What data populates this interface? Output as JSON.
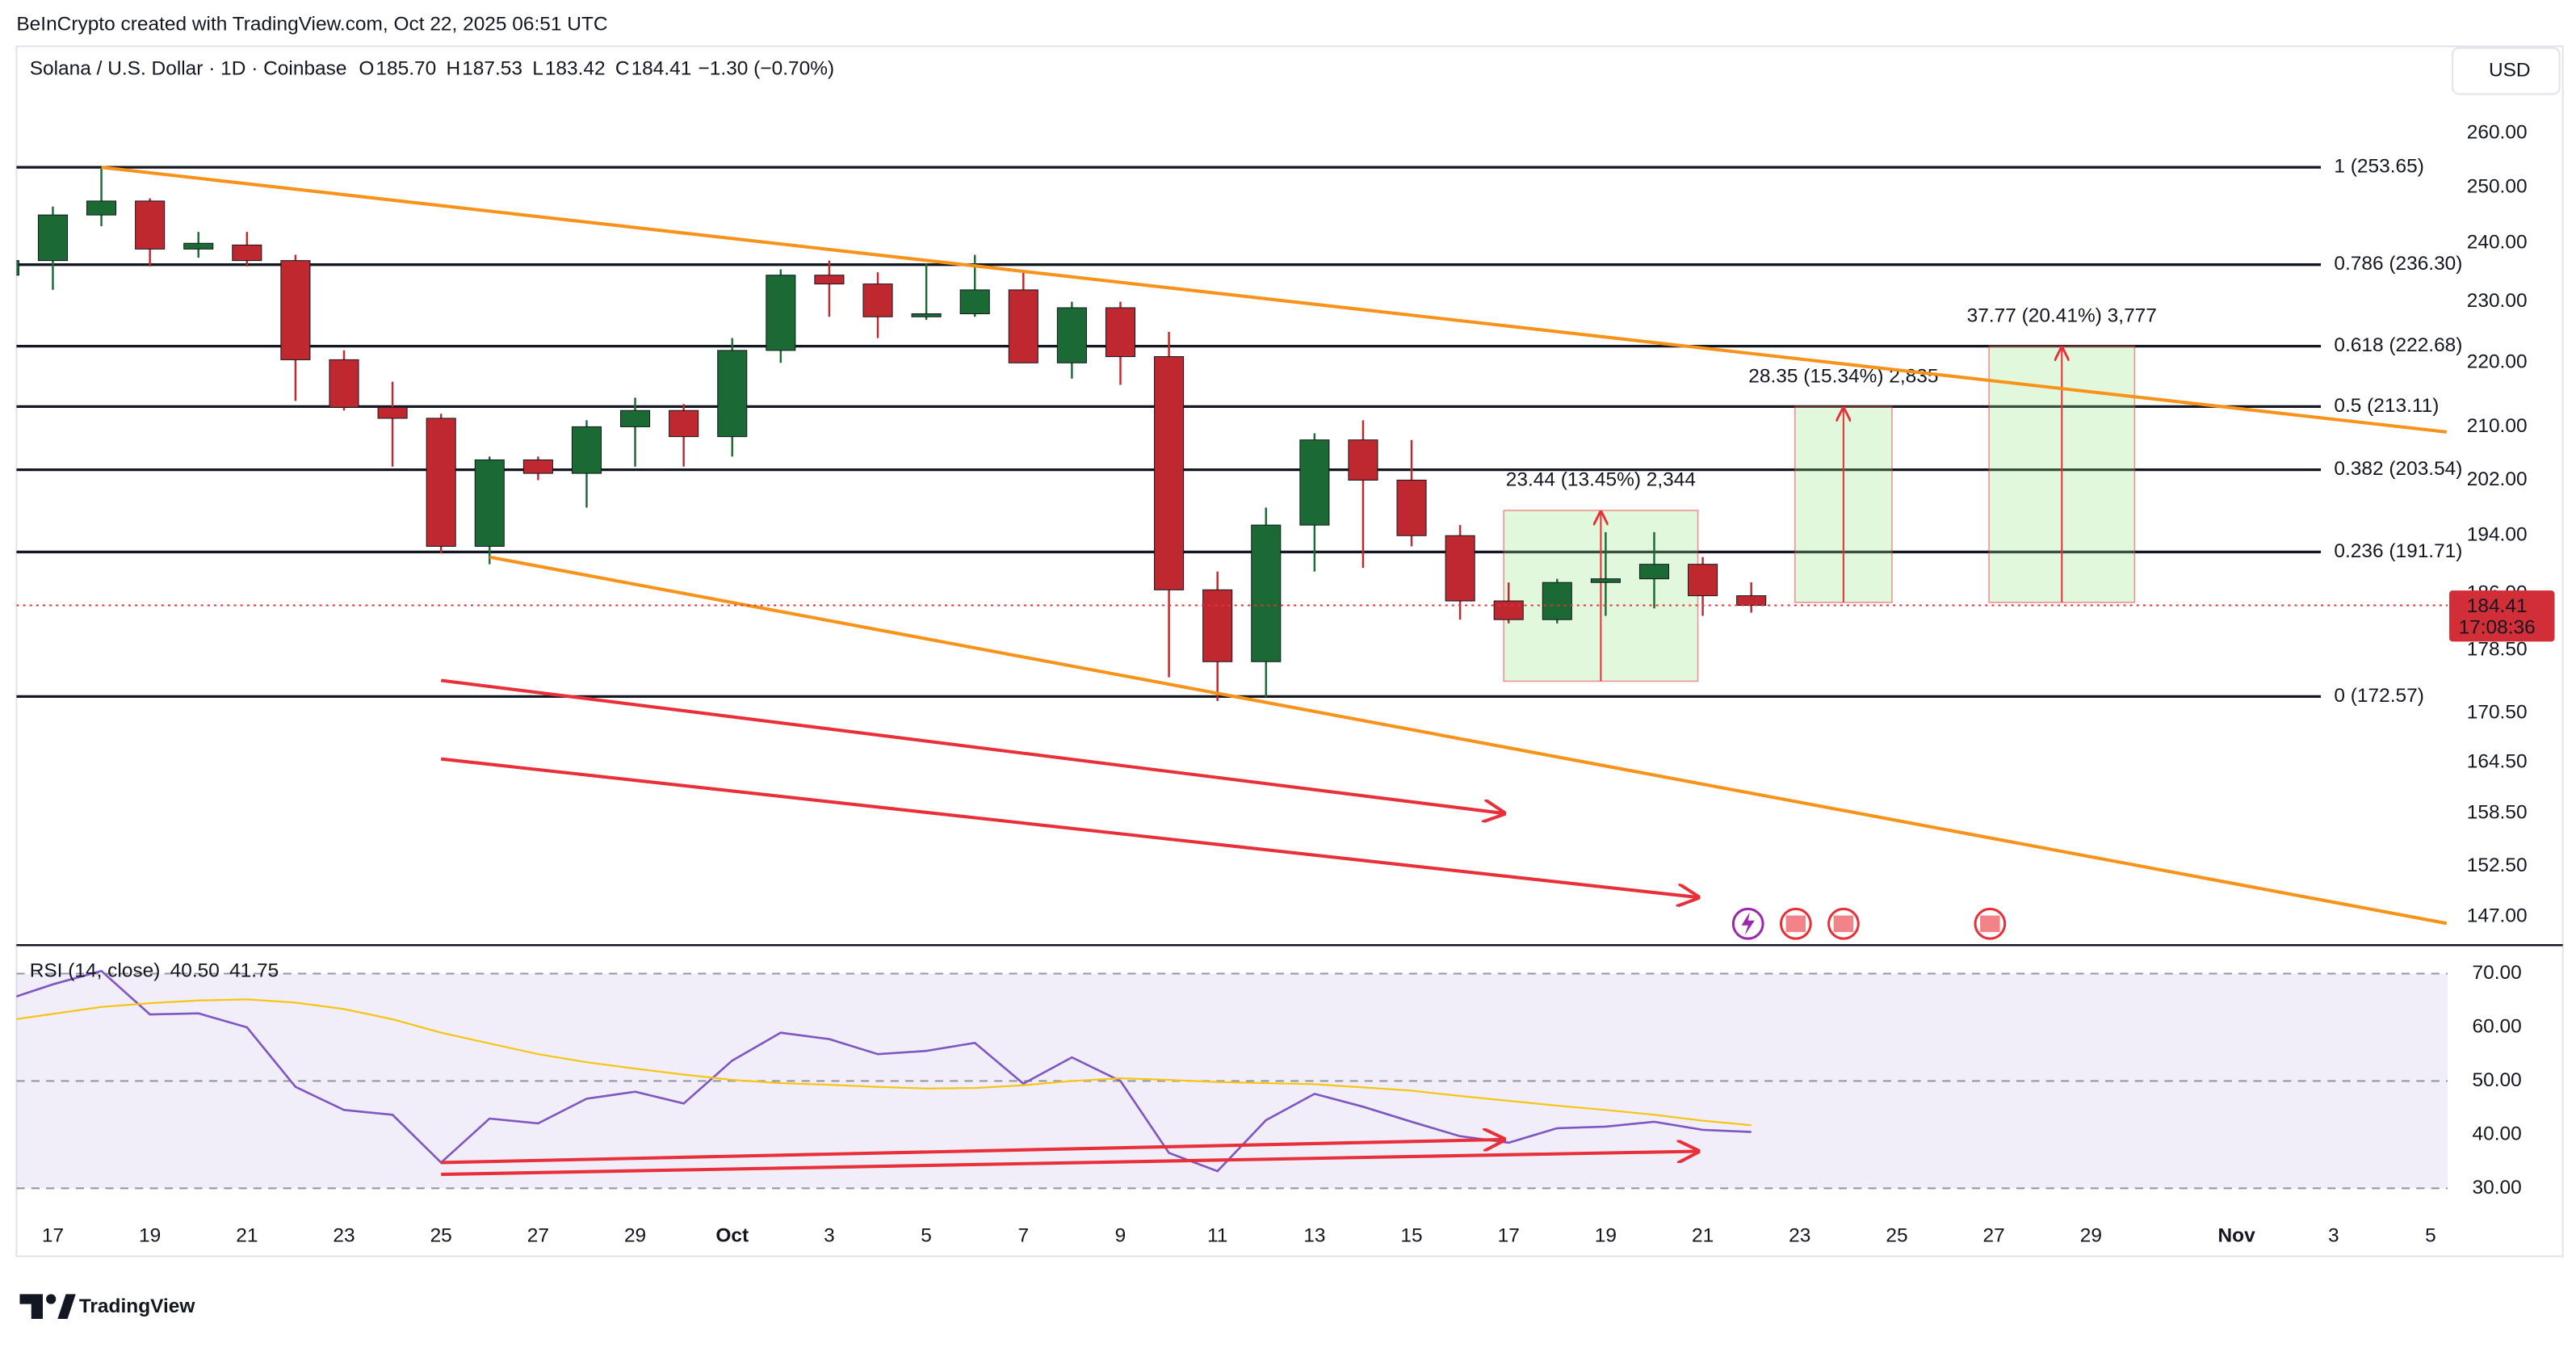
{
  "header": {
    "attribution": "BeInCrypto created with TradingView.com, Oct 22, 2025 06:51 UTC",
    "symbol": "Solana / U.S. Dollar · 1D · Coinbase",
    "ohlc": [
      {
        "label": "O",
        "value": "185.70"
      },
      {
        "label": "H",
        "value": "187.53"
      },
      {
        "label": "L",
        "value": "183.42"
      },
      {
        "label": "C",
        "value": "184.41"
      }
    ],
    "change": "−1.30 (−0.70%)",
    "currency": "USD",
    "brand": "TradingView"
  },
  "chart_data": [
    {
      "type": "candlestick",
      "title": "Solana / U.S. Dollar · 1D · Coinbase",
      "x": [
        0,
        1,
        2,
        3,
        4,
        5,
        6,
        7,
        8,
        9,
        10,
        11,
        12,
        13,
        14,
        15,
        16,
        17,
        18,
        19,
        20,
        21,
        22,
        23,
        24,
        25,
        26,
        27,
        28,
        29,
        30,
        31,
        32,
        33,
        34,
        35,
        36
      ],
      "open": [
        234.5,
        237,
        245,
        247.5,
        239,
        239.7,
        237,
        220.5,
        213,
        211.3,
        192.5,
        205,
        203,
        210,
        212.5,
        208.5,
        222,
        234.5,
        233,
        227.5,
        228,
        232,
        220,
        229,
        221,
        186.5,
        177,
        195.5,
        208,
        202,
        194,
        185,
        182.5,
        187.5,
        188,
        190,
        185.7
      ],
      "high": [
        238,
        246.5,
        253.5,
        248,
        242,
        242,
        238,
        222,
        217,
        212,
        205.5,
        205.5,
        211,
        214.5,
        213.5,
        224,
        235.5,
        237,
        235,
        236.5,
        238,
        235,
        230,
        230,
        225,
        189,
        198,
        209,
        211,
        208,
        195.5,
        187.5,
        188,
        194.5,
        194.5,
        191,
        187.53
      ],
      "low": [
        233,
        232,
        243,
        236,
        237.5,
        236,
        214,
        212.5,
        204,
        191.5,
        190,
        202,
        198,
        204,
        204,
        205.5,
        220,
        227.5,
        224,
        227,
        227.5,
        220,
        217.5,
        216.5,
        175,
        172,
        172.5,
        189,
        189.5,
        192.5,
        182.5,
        182,
        182,
        183,
        184,
        183,
        183.42
      ],
      "close": [
        237,
        245,
        247.5,
        239,
        240,
        237,
        220.5,
        213,
        211.3,
        192.5,
        205,
        203,
        210,
        212.5,
        208.5,
        222,
        234.5,
        233,
        227.5,
        228,
        232,
        220,
        229,
        221,
        186.5,
        177,
        195.5,
        208,
        202,
        194,
        185,
        182.5,
        187.5,
        188,
        190,
        185.7,
        184.41
      ],
      "up_color": "#1b6a33",
      "down_color": "#c0282f",
      "xlim": [
        0.25,
        50.35
      ],
      "ylim": [
        144,
        277
      ],
      "log_scale": true,
      "yticks": [
        {
          "value": 260,
          "label": "260.00"
        },
        {
          "value": 250,
          "label": "250.00"
        },
        {
          "value": 240,
          "label": "240.00"
        },
        {
          "value": 230,
          "label": "230.00"
        },
        {
          "value": 220,
          "label": "220.00"
        },
        {
          "value": 210,
          "label": "210.00"
        },
        {
          "value": 202,
          "label": "202.00"
        },
        {
          "value": 194,
          "label": "194.00"
        },
        {
          "value": 186,
          "label": "186.00"
        },
        {
          "value": 178.5,
          "label": "178.50"
        },
        {
          "value": 170.5,
          "label": "170.50"
        },
        {
          "value": 164.5,
          "label": "164.50"
        },
        {
          "value": 158.5,
          "label": "158.50"
        },
        {
          "value": 152.5,
          "label": "152.50"
        },
        {
          "value": 147,
          "label": "147.00"
        }
      ],
      "fib_levels": [
        {
          "value": 253.65,
          "label": "1 (253.65)"
        },
        {
          "value": 236.3,
          "label": "0.786 (236.30)"
        },
        {
          "value": 222.68,
          "label": "0.618 (222.68)"
        },
        {
          "value": 213.11,
          "label": "0.5 (213.11)"
        },
        {
          "value": 203.54,
          "label": "0.382 (203.54)"
        },
        {
          "value": 191.71,
          "label": "0.236 (191.71)"
        },
        {
          "value": 172.57,
          "label": "0 (172.57)"
        }
      ],
      "trendlines": [
        {
          "x": [
            2,
            50.33
          ],
          "y": [
            253.65,
            209.2
          ],
          "color": "#f7931a"
        },
        {
          "x": [
            10,
            50.33
          ],
          "y": [
            191,
            146.3
          ],
          "color": "#f7931a"
        }
      ],
      "arrows": [
        {
          "x": [
            9,
            30.9
          ],
          "y": [
            174.6,
            158.5
          ],
          "color": "#e8303a"
        },
        {
          "x": [
            9,
            34.9
          ],
          "y": [
            164.9,
            149.1
          ],
          "color": "#e8303a"
        }
      ],
      "measures": [
        {
          "x": [
            30.9,
            34.9
          ],
          "y": [
            174.5,
            197.6
          ],
          "label": "23.44 (13.45%) 2,344"
        },
        {
          "x": [
            36.9,
            38.9
          ],
          "y": [
            184.8,
            213.1
          ],
          "label": "28.35 (15.34%) 2,835"
        },
        {
          "x": [
            40.9,
            43.9
          ],
          "y": [
            184.8,
            222.7
          ],
          "label": "37.77 (20.41%) 3,777"
        }
      ],
      "last_price": 184.41,
      "countdown": "17:08:36"
    },
    {
      "type": "line",
      "title": "RSI (14, close)",
      "x": [
        0,
        1,
        2,
        3,
        4,
        5,
        6,
        7,
        8,
        9,
        10,
        11,
        12,
        13,
        14,
        15,
        16,
        17,
        18,
        19,
        20,
        21,
        22,
        23,
        24,
        25,
        26,
        27,
        28,
        29,
        30,
        31,
        32,
        33,
        34,
        35,
        36
      ],
      "series": [
        {
          "color": "#7e57c2",
          "last_label": "40.50",
          "values": [
            65,
            68,
            70.5,
            62.4,
            62.6,
            60,
            48.9,
            44.6,
            43.7,
            34.8,
            43,
            42.1,
            46.7,
            48,
            45.8,
            53.8,
            59,
            57.8,
            55,
            55.6,
            57.1,
            49.5,
            54.4,
            50,
            36.6,
            33.2,
            42.7,
            47.6,
            45.2,
            42.4,
            39.7,
            38.5,
            41.2,
            41.5,
            42.4,
            40.9,
            40.5
          ]
        },
        {
          "color": "#f5c518",
          "last_label": "41.75",
          "values": [
            61.2,
            62.5,
            63.8,
            64.5,
            65,
            65.2,
            64.6,
            63.4,
            61.5,
            59,
            57,
            55,
            53.5,
            52.3,
            51.2,
            50.2,
            49.6,
            49.3,
            48.9,
            48.6,
            48.7,
            49.2,
            50,
            50.5,
            50.2,
            49.8,
            49.6,
            49.4,
            48.8,
            48.2,
            47.2,
            46.3,
            45.4,
            44.6,
            43.7,
            42.6,
            41.75
          ]
        }
      ],
      "xlim": [
        0.25,
        50.35
      ],
      "ylim": [
        25,
        75
      ],
      "yticks": [
        {
          "value": 70,
          "label": "70.00"
        },
        {
          "value": 60,
          "label": "60.00"
        },
        {
          "value": 50,
          "label": "50.00"
        },
        {
          "value": 40,
          "label": "40.00"
        },
        {
          "value": 30,
          "label": "30.00"
        }
      ],
      "band": [
        30,
        70
      ],
      "dashed_levels": [
        70,
        50,
        30
      ],
      "xticks": [
        {
          "value": 1,
          "label": "17"
        },
        {
          "value": 3,
          "label": "19"
        },
        {
          "value": 5,
          "label": "21"
        },
        {
          "value": 7,
          "label": "23"
        },
        {
          "value": 9,
          "label": "25"
        },
        {
          "value": 11,
          "label": "27"
        },
        {
          "value": 13,
          "label": "29"
        },
        {
          "value": 15,
          "label": "Oct"
        },
        {
          "value": 17,
          "label": "3"
        },
        {
          "value": 19,
          "label": "5"
        },
        {
          "value": 21,
          "label": "7"
        },
        {
          "value": 23,
          "label": "9"
        },
        {
          "value": 25,
          "label": "11"
        },
        {
          "value": 27,
          "label": "13"
        },
        {
          "value": 29,
          "label": "15"
        },
        {
          "value": 31,
          "label": "17"
        },
        {
          "value": 33,
          "label": "19"
        },
        {
          "value": 35,
          "label": "21"
        },
        {
          "value": 37,
          "label": "23"
        },
        {
          "value": 39,
          "label": "25"
        },
        {
          "value": 41,
          "label": "27"
        },
        {
          "value": 43,
          "label": "29"
        },
        {
          "value": 46,
          "label": "Nov"
        },
        {
          "value": 48,
          "label": "3"
        },
        {
          "value": 50,
          "label": "5"
        }
      ],
      "arrows": [
        {
          "x": [
            9,
            30.9
          ],
          "y": [
            34.8,
            39.1
          ],
          "color": "#e8303a"
        },
        {
          "x": [
            9,
            34.9
          ],
          "y": [
            32.6,
            36.9
          ],
          "color": "#e8303a"
        }
      ]
    }
  ]
}
